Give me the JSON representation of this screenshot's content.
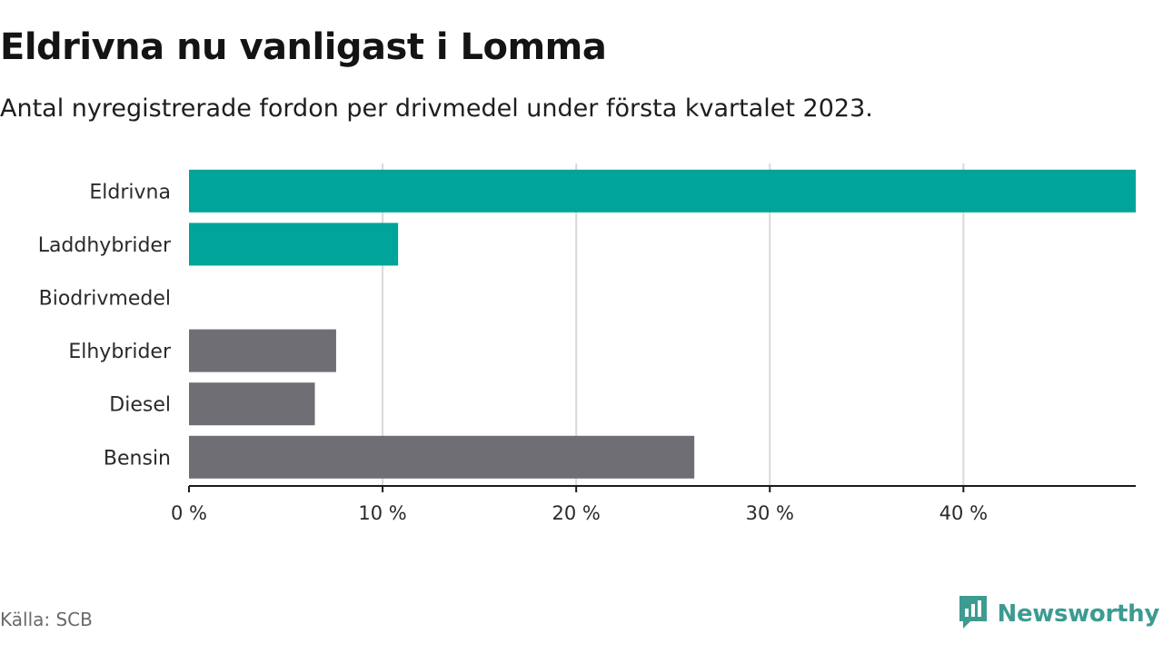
{
  "title": "Eldrivna nu vanligast i Lomma",
  "subtitle": "Antal nyregistrerade fordon per drivmedel under första kvartalet 2023.",
  "source": "Källa: SCB",
  "brand": {
    "name": "Newsworthy",
    "logo_icon": "newsworthy-logo-icon",
    "color": "#3d9b91"
  },
  "colors": {
    "highlight": "#00a499",
    "neutral": "#6f6e74",
    "grid": "#d9d9d9",
    "axis": "#1a1a1a"
  },
  "chart_data": {
    "type": "bar",
    "orientation": "horizontal",
    "categories": [
      "Eldrivna",
      "Laddhybrider",
      "Biodrivmedel",
      "Elhybrider",
      "Diesel",
      "Bensin"
    ],
    "values": [
      48.9,
      10.8,
      0,
      7.6,
      6.5,
      26.1
    ],
    "highlighted": [
      true,
      true,
      false,
      false,
      false,
      false
    ],
    "x_ticks": [
      0,
      10,
      20,
      30,
      40
    ],
    "x_tick_labels": [
      "0 %",
      "10 %",
      "20 %",
      "30 %",
      "40 %"
    ],
    "xlim": [
      0,
      48.9
    ],
    "grid": true,
    "legend": "none"
  }
}
